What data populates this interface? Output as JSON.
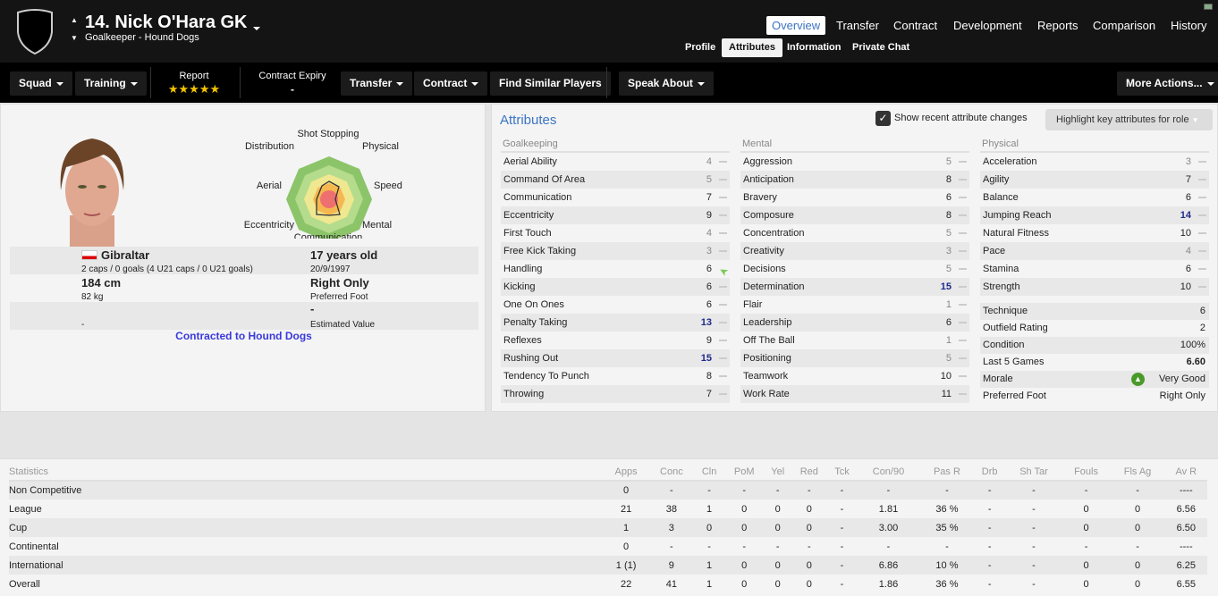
{
  "header": {
    "title": "14. Nick O'Hara GK",
    "subtitle": "Goalkeeper - Hound Dogs",
    "tabs": [
      {
        "label": "Overview",
        "active": true
      },
      {
        "label": "Transfer"
      },
      {
        "label": "Contract"
      },
      {
        "label": "Development"
      },
      {
        "label": "Reports"
      },
      {
        "label": "Comparison"
      },
      {
        "label": "History"
      }
    ],
    "subtabs": [
      {
        "label": "Profile"
      },
      {
        "label": "Attributes",
        "active": true
      },
      {
        "label": "Information"
      },
      {
        "label": "Private Chat"
      }
    ]
  },
  "toolbar": {
    "squad": "Squad",
    "training": "Training",
    "report_label": "Report",
    "report_stars": 5,
    "contract_expiry_label": "Contract Expiry",
    "contract_expiry_value": "-",
    "transfer": "Transfer",
    "contract": "Contract",
    "find_similar": "Find Similar Players",
    "speak_about": "Speak About",
    "more_actions": "More Actions..."
  },
  "profile": {
    "radar_labels": [
      "Shot Stopping",
      "Physical",
      "Speed",
      "Mental",
      "Communication",
      "Eccentricity",
      "Aerial",
      "Distribution"
    ],
    "nation": "Gibraltar",
    "caps": "2 caps / 0 goals (4 U21 caps / 0 U21 goals)",
    "age": "17 years old",
    "dob": "20/9/1997",
    "height": "184 cm",
    "weight": "82 kg",
    "foot": "Right Only",
    "foot_label": "Preferred Foot",
    "value": "-",
    "value_label": "Estimated Value",
    "left_dash": "-",
    "contract_link": "Contracted to Hound Dogs"
  },
  "attributes": {
    "title": "Attributes",
    "show_changes_label": "Show recent attribute changes",
    "show_changes_checked": true,
    "highlight_button": "Highlight key attributes for role",
    "columns": [
      {
        "heading": "Goalkeeping",
        "items": [
          [
            "Aerial Ability",
            4
          ],
          [
            "Command Of Area",
            5
          ],
          [
            "Communication",
            7
          ],
          [
            "Eccentricity",
            9
          ],
          [
            "First Touch",
            4
          ],
          [
            "Free Kick Taking",
            3
          ],
          [
            "Handling",
            6,
            "up"
          ],
          [
            "Kicking",
            6
          ],
          [
            "One On Ones",
            6
          ],
          [
            "Penalty Taking",
            13
          ],
          [
            "Reflexes",
            9
          ],
          [
            "Rushing Out",
            15
          ],
          [
            "Tendency To Punch",
            8
          ],
          [
            "Throwing",
            7
          ]
        ]
      },
      {
        "heading": "Mental",
        "items": [
          [
            "Aggression",
            5
          ],
          [
            "Anticipation",
            8
          ],
          [
            "Bravery",
            6
          ],
          [
            "Composure",
            8
          ],
          [
            "Concentration",
            5
          ],
          [
            "Creativity",
            3
          ],
          [
            "Decisions",
            5
          ],
          [
            "Determination",
            15
          ],
          [
            "Flair",
            1
          ],
          [
            "Leadership",
            6
          ],
          [
            "Off The Ball",
            1
          ],
          [
            "Positioning",
            5
          ],
          [
            "Teamwork",
            10
          ],
          [
            "Work Rate",
            11
          ]
        ]
      },
      {
        "heading": "Physical",
        "items": [
          [
            "Acceleration",
            3
          ],
          [
            "Agility",
            7
          ],
          [
            "Balance",
            6
          ],
          [
            "Jumping Reach",
            14
          ],
          [
            "Natural Fitness",
            10
          ],
          [
            "Pace",
            4
          ],
          [
            "Stamina",
            6
          ],
          [
            "Strength",
            10
          ]
        ]
      }
    ],
    "extra": [
      [
        "Technique",
        "6"
      ],
      [
        "Outfield Rating",
        "2"
      ],
      [
        "Condition",
        "100%"
      ],
      [
        "Last 5 Games",
        "6.60"
      ],
      [
        "Morale",
        "Very Good"
      ],
      [
        "Preferred Foot",
        "Right Only"
      ]
    ]
  },
  "statistics": {
    "headers": [
      "Statistics",
      "Apps",
      "Conc",
      "Cln",
      "PoM",
      "Yel",
      "Red",
      "Tck",
      "Con/90",
      "Pas R",
      "Drb",
      "Sh Tar",
      "Fouls",
      "Fls Ag",
      "Av R"
    ],
    "rows": [
      [
        "Non Competitive",
        "0",
        "-",
        "-",
        "-",
        "-",
        "-",
        "-",
        "-",
        "-",
        "-",
        "-",
        "-",
        "-",
        "----"
      ],
      [
        "League",
        "21",
        "38",
        "1",
        "0",
        "0",
        "0",
        "-",
        "1.81",
        "36 %",
        "-",
        "-",
        "0",
        "0",
        "6.56"
      ],
      [
        "Cup",
        "1",
        "3",
        "0",
        "0",
        "0",
        "0",
        "-",
        "3.00",
        "35 %",
        "-",
        "-",
        "0",
        "0",
        "6.50"
      ],
      [
        "Continental",
        "0",
        "-",
        "-",
        "-",
        "-",
        "-",
        "-",
        "-",
        "-",
        "-",
        "-",
        "-",
        "-",
        "----"
      ],
      [
        "International",
        "1 (1)",
        "9",
        "1",
        "0",
        "0",
        "0",
        "-",
        "6.86",
        "10 %",
        "-",
        "-",
        "0",
        "0",
        "6.25"
      ],
      [
        "Overall",
        "22",
        "41",
        "1",
        "0",
        "0",
        "0",
        "-",
        "1.86",
        "36 %",
        "-",
        "-",
        "0",
        "0",
        "6.55"
      ]
    ]
  },
  "colors": {
    "accent": "#3c74c4",
    "high_attr": "#1e2a8c",
    "link": "#3a3adc",
    "morale": "#4a9a2a"
  }
}
